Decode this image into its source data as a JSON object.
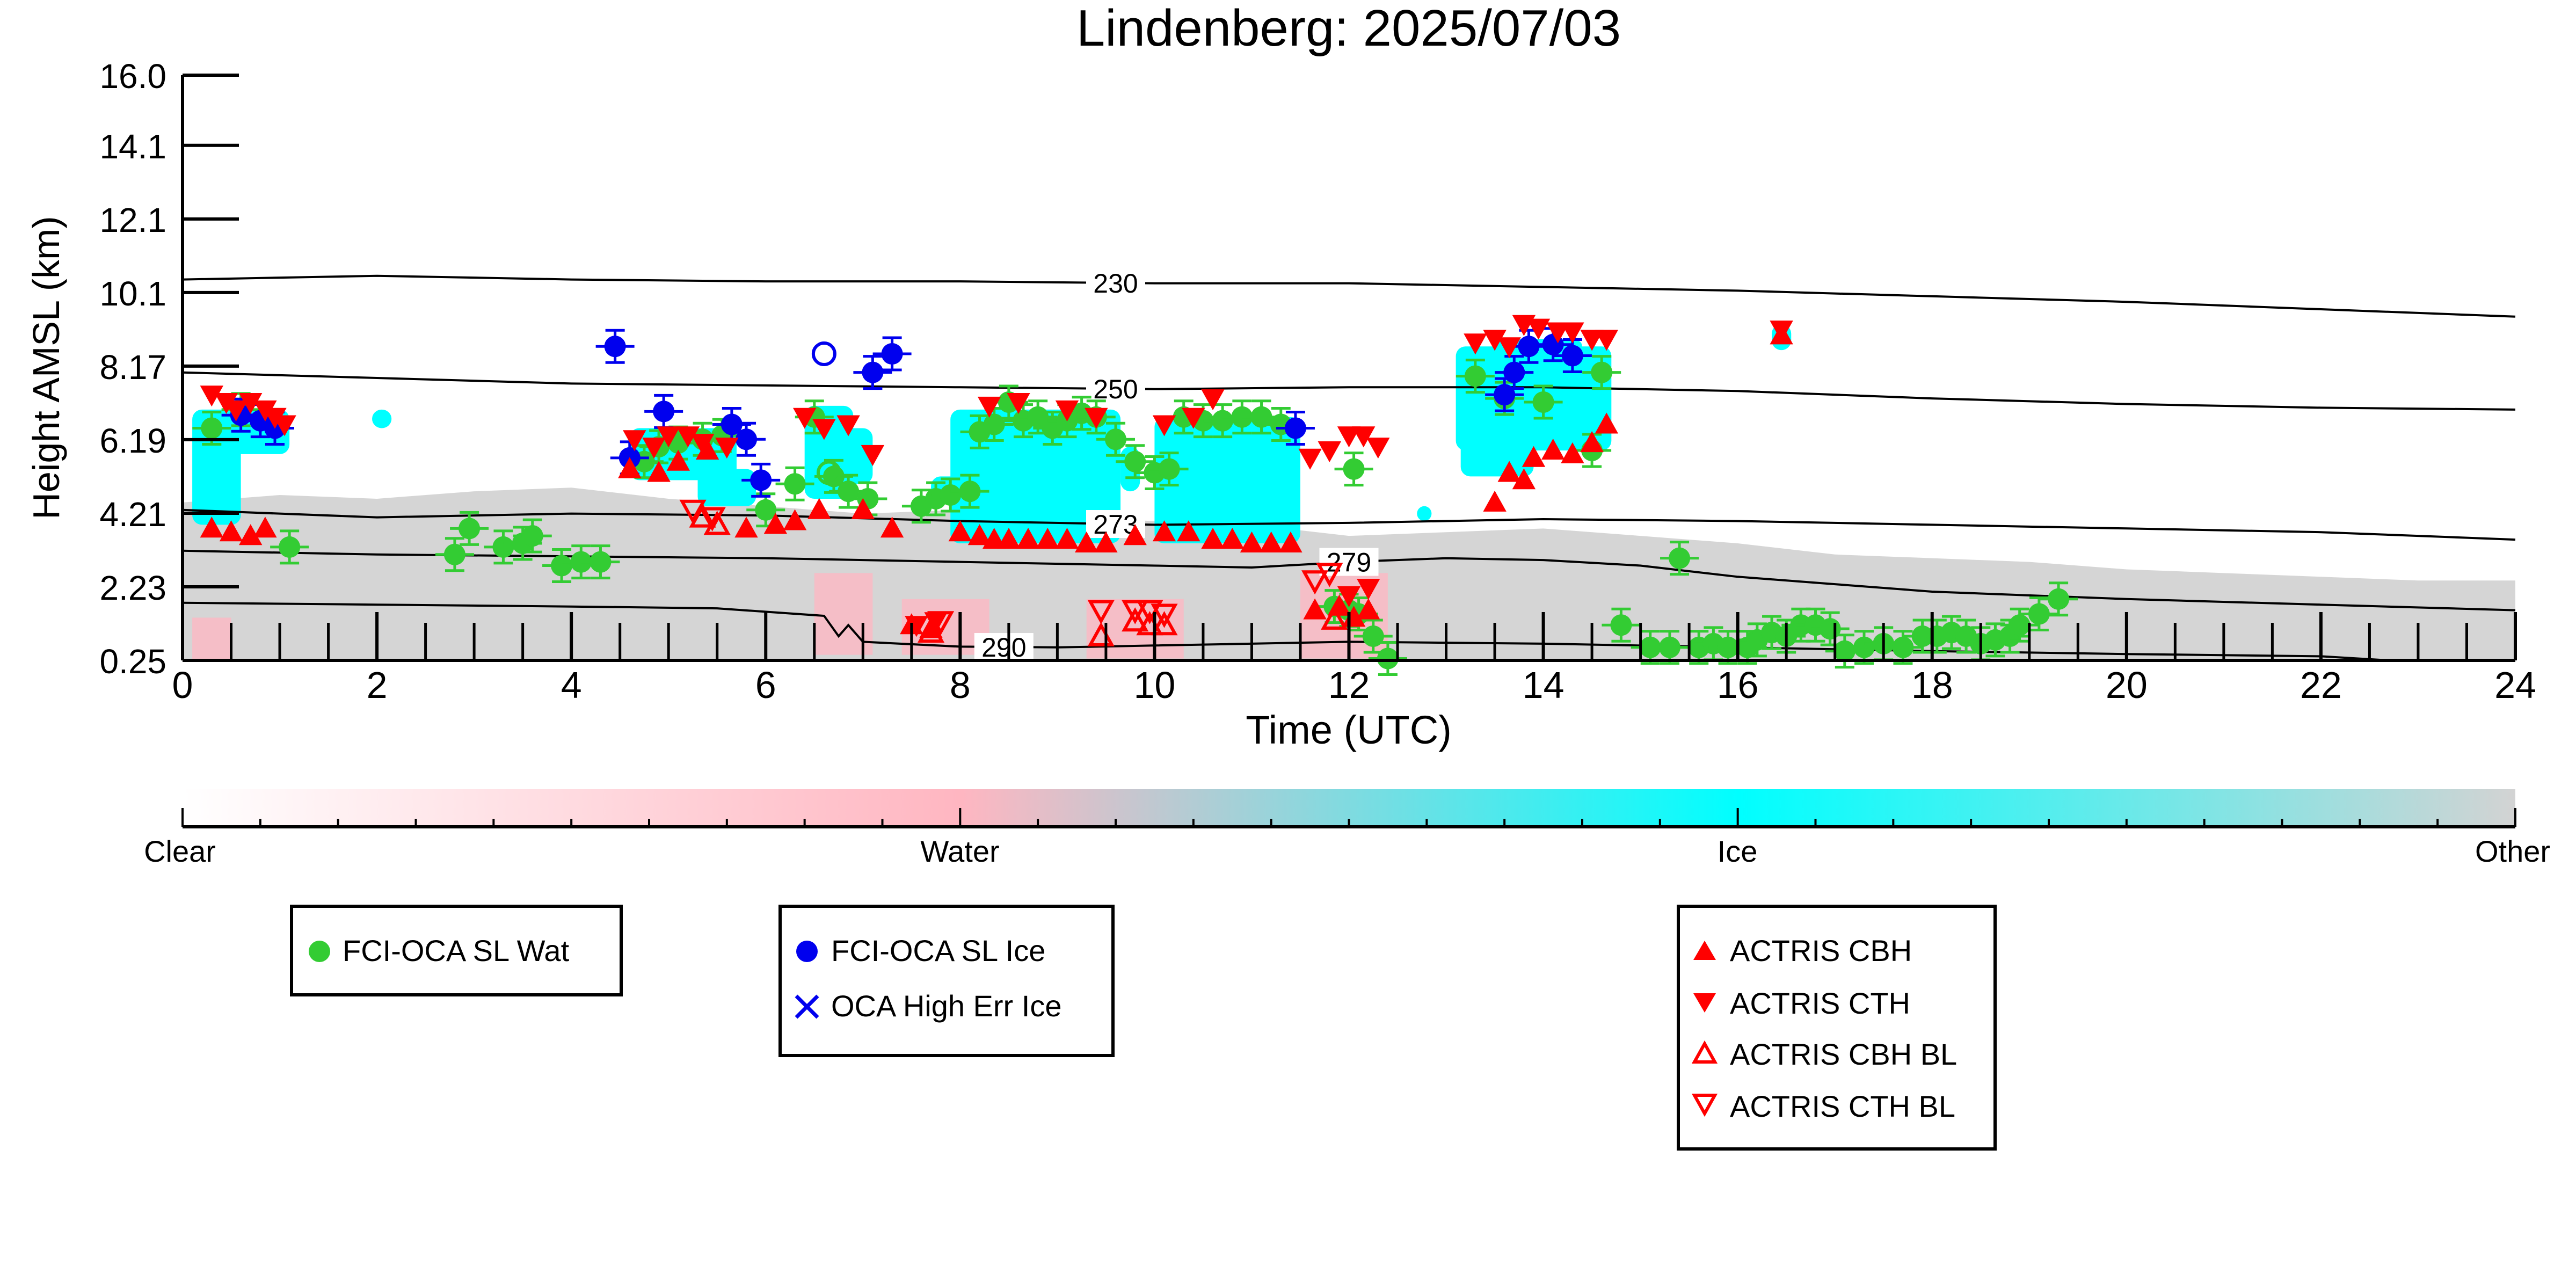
{
  "chart_data": {
    "type": "scatter",
    "title": "Lindenberg: 2025/07/03",
    "xlabel": "Time (UTC)",
    "ylabel": "Height AMSL (km)",
    "xlim": [
      0,
      24
    ],
    "ylim": [
      0.25,
      16.0
    ],
    "x_ticks": [
      "0",
      "2",
      "4",
      "6",
      "8",
      "10",
      "12",
      "14",
      "16",
      "18",
      "20",
      "22",
      "24"
    ],
    "x_tick_values": [
      0,
      2,
      4,
      6,
      8,
      10,
      12,
      14,
      16,
      18,
      20,
      22,
      24
    ],
    "y_ticks": [
      "0.25",
      "2.23",
      "4.21",
      "6.19",
      "8.17",
      "10.1",
      "12.1",
      "14.1",
      "16.0"
    ],
    "y_tick_values": [
      0.25,
      2.23,
      4.21,
      6.19,
      8.17,
      10.15,
      12.13,
      14.11,
      16.0
    ],
    "grid": false,
    "colorbar": {
      "labels": [
        "Clear",
        "Water",
        "Ice",
        "Other"
      ],
      "colors": [
        "#ffffff",
        "#ffb6c1",
        "#00ffff",
        "#d3d3d3"
      ]
    },
    "colors": {
      "water": "#33cc33",
      "ice": "#0000ee",
      "actris": "#ff0000",
      "cloud_ice": "#00ffff",
      "cloud_water": "#ffb6c1",
      "cloud_other": "#d3d3d3"
    },
    "isotherms": [
      {
        "label": "230",
        "label_x": 9.6,
        "x": [
          0,
          2,
          4,
          6,
          8,
          10,
          12,
          14,
          16,
          18,
          20,
          22,
          24
        ],
        "y": [
          10.5,
          10.6,
          10.5,
          10.45,
          10.45,
          10.4,
          10.4,
          10.3,
          10.2,
          10.05,
          9.9,
          9.7,
          9.5
        ]
      },
      {
        "label": "250",
        "label_x": 9.6,
        "x": [
          0,
          2,
          4,
          6,
          8,
          10,
          12,
          14,
          16,
          18,
          20,
          22,
          24
        ],
        "y": [
          8.0,
          7.85,
          7.7,
          7.65,
          7.6,
          7.55,
          7.6,
          7.6,
          7.5,
          7.3,
          7.15,
          7.05,
          7.0
        ]
      },
      {
        "label": "273",
        "label_x": 9.6,
        "x": [
          0,
          2,
          4,
          6,
          8,
          10,
          12,
          14,
          16,
          18,
          20,
          22,
          24
        ],
        "y": [
          4.3,
          4.1,
          4.2,
          4.15,
          4.0,
          3.9,
          3.95,
          4.05,
          4.0,
          3.9,
          3.8,
          3.7,
          3.5
        ]
      },
      {
        "label": "279",
        "label_x": 12.0,
        "x": [
          0,
          2,
          4,
          6,
          7,
          8,
          10,
          11,
          12,
          13,
          14,
          15,
          16,
          17,
          18,
          20,
          22,
          24
        ],
        "y": [
          3.2,
          3.1,
          3.05,
          3.0,
          2.95,
          2.9,
          2.8,
          2.75,
          2.9,
          3.0,
          2.95,
          2.8,
          2.5,
          2.3,
          2.1,
          1.9,
          1.75,
          1.6
        ]
      },
      {
        "label": "290",
        "label_x": 8.45,
        "x": [
          0,
          2,
          4,
          5.5,
          6.6,
          6.75,
          6.85,
          7.0,
          8.0,
          9.0,
          10.0,
          12.0,
          14.0,
          16.0,
          18.0,
          20.0,
          22.0,
          22.7
        ],
        "y": [
          1.8,
          1.75,
          1.7,
          1.65,
          1.45,
          0.9,
          1.2,
          0.75,
          0.62,
          0.6,
          0.65,
          0.75,
          0.7,
          0.6,
          0.5,
          0.42,
          0.36,
          0.25
        ]
      }
    ],
    "series": [
      {
        "name": "FCI-OCA SL Wat",
        "marker": "circle",
        "points": [
          [
            0.3,
            6.5
          ],
          [
            0.6,
            7.0
          ],
          [
            1.1,
            3.3
          ],
          [
            2.8,
            3.1
          ],
          [
            2.95,
            3.8
          ],
          [
            3.3,
            3.3
          ],
          [
            3.5,
            3.4
          ],
          [
            3.6,
            3.6
          ],
          [
            3.9,
            2.8
          ],
          [
            4.1,
            2.9
          ],
          [
            4.3,
            2.9
          ],
          [
            4.75,
            5.6
          ],
          [
            4.9,
            6.0
          ],
          [
            5.1,
            6.1
          ],
          [
            5.35,
            6.2
          ],
          [
            5.55,
            6.3
          ],
          [
            6.0,
            4.3
          ],
          [
            6.3,
            5.0
          ],
          [
            6.5,
            6.8
          ],
          [
            6.7,
            5.2
          ],
          [
            6.85,
            4.8
          ],
          [
            7.05,
            4.6
          ],
          [
            7.6,
            4.4
          ],
          [
            7.75,
            4.6
          ],
          [
            7.9,
            4.7
          ],
          [
            8.1,
            4.8
          ],
          [
            8.2,
            6.4
          ],
          [
            8.35,
            6.6
          ],
          [
            8.5,
            7.2
          ],
          [
            8.65,
            6.7
          ],
          [
            8.8,
            6.8
          ],
          [
            8.95,
            6.5
          ],
          [
            9.1,
            6.7
          ],
          [
            9.25,
            6.9
          ],
          [
            9.4,
            6.8
          ],
          [
            9.6,
            6.2
          ],
          [
            9.8,
            5.6
          ],
          [
            10.0,
            5.3
          ],
          [
            10.15,
            5.4
          ],
          [
            10.3,
            6.8
          ],
          [
            10.5,
            6.7
          ],
          [
            10.7,
            6.7
          ],
          [
            10.9,
            6.8
          ],
          [
            11.1,
            6.8
          ],
          [
            11.3,
            6.6
          ],
          [
            11.85,
            1.7
          ],
          [
            12.0,
            1.6
          ],
          [
            12.1,
            1.5
          ],
          [
            12.25,
            0.9
          ],
          [
            12.4,
            0.3
          ],
          [
            12.05,
            5.4
          ],
          [
            13.3,
            7.9
          ],
          [
            13.6,
            7.3
          ],
          [
            14.0,
            7.2
          ],
          [
            14.5,
            5.9
          ],
          [
            14.6,
            8.0
          ],
          [
            14.8,
            1.2
          ],
          [
            15.1,
            0.6
          ],
          [
            15.3,
            0.6
          ],
          [
            15.4,
            3.0
          ],
          [
            15.6,
            0.6
          ],
          [
            15.75,
            0.7
          ],
          [
            15.9,
            0.6
          ],
          [
            16.1,
            0.6
          ],
          [
            16.2,
            0.8
          ],
          [
            16.35,
            1.0
          ],
          [
            16.5,
            0.9
          ],
          [
            16.65,
            1.2
          ],
          [
            16.8,
            1.2
          ],
          [
            16.95,
            1.1
          ],
          [
            17.1,
            0.5
          ],
          [
            17.3,
            0.6
          ],
          [
            17.5,
            0.7
          ],
          [
            17.7,
            0.6
          ],
          [
            17.9,
            0.9
          ],
          [
            18.05,
            0.9
          ],
          [
            18.2,
            1.0
          ],
          [
            18.35,
            0.9
          ],
          [
            18.5,
            0.7
          ],
          [
            18.65,
            0.8
          ],
          [
            18.8,
            0.9
          ],
          [
            18.9,
            1.2
          ],
          [
            19.1,
            1.5
          ],
          [
            19.3,
            1.9
          ]
        ]
      },
      {
        "name": "FCI-OCA SL Ice",
        "marker": "circle",
        "points": [
          [
            0.6,
            6.85
          ],
          [
            0.8,
            6.7
          ],
          [
            0.95,
            6.5
          ],
          [
            4.45,
            8.7
          ],
          [
            4.6,
            5.7
          ],
          [
            4.95,
            6.95
          ],
          [
            5.65,
            6.6
          ],
          [
            5.8,
            6.2
          ],
          [
            5.95,
            5.1
          ],
          [
            7.1,
            8.0
          ],
          [
            7.3,
            8.5
          ],
          [
            11.45,
            6.5
          ],
          [
            13.6,
            7.4
          ],
          [
            13.7,
            8.0
          ],
          [
            13.85,
            8.7
          ],
          [
            14.1,
            8.75
          ],
          [
            14.3,
            8.45
          ]
        ]
      },
      {
        "name": "OCA High Err Ice",
        "marker": "x",
        "points": []
      },
      {
        "name": "ACTRIS CBH",
        "marker": "triangle-up",
        "points": [
          [
            0.3,
            3.8
          ],
          [
            0.5,
            3.7
          ],
          [
            0.7,
            3.6
          ],
          [
            0.85,
            3.8
          ],
          [
            4.6,
            5.4
          ],
          [
            4.9,
            5.3
          ],
          [
            5.1,
            5.6
          ],
          [
            5.4,
            5.9
          ],
          [
            5.8,
            3.8
          ],
          [
            6.1,
            3.9
          ],
          [
            6.3,
            4.0
          ],
          [
            6.55,
            4.3
          ],
          [
            7.0,
            4.3
          ],
          [
            7.3,
            3.8
          ],
          [
            7.5,
            1.2
          ],
          [
            7.7,
            1.1
          ],
          [
            8.0,
            3.7
          ],
          [
            8.2,
            3.6
          ],
          [
            8.35,
            3.5
          ],
          [
            8.5,
            3.5
          ],
          [
            8.7,
            3.5
          ],
          [
            8.9,
            3.5
          ],
          [
            9.1,
            3.5
          ],
          [
            9.3,
            3.4
          ],
          [
            9.5,
            3.4
          ],
          [
            9.8,
            3.6
          ],
          [
            10.1,
            3.7
          ],
          [
            10.35,
            3.7
          ],
          [
            10.6,
            3.5
          ],
          [
            10.8,
            3.5
          ],
          [
            11.0,
            3.4
          ],
          [
            11.2,
            3.4
          ],
          [
            11.4,
            3.4
          ],
          [
            11.65,
            1.6
          ],
          [
            11.9,
            1.7
          ],
          [
            12.05,
            1.4
          ],
          [
            12.2,
            1.6
          ],
          [
            13.5,
            4.5
          ],
          [
            13.65,
            5.3
          ],
          [
            13.8,
            5.1
          ],
          [
            13.9,
            5.7
          ],
          [
            14.1,
            5.9
          ],
          [
            14.3,
            5.8
          ],
          [
            14.5,
            6.1
          ],
          [
            14.65,
            6.6
          ],
          [
            16.45,
            9.0
          ]
        ]
      },
      {
        "name": "ACTRIS CTH",
        "marker": "triangle-down",
        "points": [
          [
            0.3,
            7.4
          ],
          [
            0.45,
            7.2
          ],
          [
            0.55,
            7.0
          ],
          [
            0.7,
            7.2
          ],
          [
            0.85,
            7.0
          ],
          [
            0.95,
            6.8
          ],
          [
            1.05,
            6.6
          ],
          [
            4.65,
            6.2
          ],
          [
            4.85,
            6.0
          ],
          [
            5.0,
            6.3
          ],
          [
            5.2,
            6.3
          ],
          [
            5.35,
            6.1
          ],
          [
            5.6,
            6.0
          ],
          [
            6.4,
            6.8
          ],
          [
            6.6,
            6.5
          ],
          [
            6.85,
            6.6
          ],
          [
            7.1,
            5.8
          ],
          [
            7.55,
            1.2
          ],
          [
            7.75,
            1.3
          ],
          [
            8.3,
            7.1
          ],
          [
            8.6,
            7.2
          ],
          [
            9.1,
            7.0
          ],
          [
            9.4,
            6.8
          ],
          [
            10.1,
            6.6
          ],
          [
            10.4,
            6.8
          ],
          [
            10.6,
            7.3
          ],
          [
            11.6,
            5.7
          ],
          [
            11.8,
            5.9
          ],
          [
            12.0,
            6.3
          ],
          [
            12.15,
            6.3
          ],
          [
            12.3,
            6.0
          ],
          [
            12.0,
            2.0
          ],
          [
            12.2,
            2.2
          ],
          [
            13.3,
            8.8
          ],
          [
            13.5,
            8.9
          ],
          [
            13.65,
            8.7
          ],
          [
            13.8,
            9.3
          ],
          [
            13.95,
            9.2
          ],
          [
            14.15,
            9.1
          ],
          [
            14.3,
            9.1
          ],
          [
            14.5,
            8.9
          ],
          [
            14.65,
            8.9
          ],
          [
            16.45,
            9.15
          ]
        ]
      },
      {
        "name": "ACTRIS CBH BL",
        "marker": "triangle-up-open",
        "points": [
          [
            5.35,
            4.1
          ],
          [
            5.5,
            3.9
          ],
          [
            7.7,
            1.0
          ],
          [
            9.45,
            0.9
          ],
          [
            9.8,
            1.3
          ],
          [
            9.95,
            1.2
          ],
          [
            10.1,
            1.2
          ],
          [
            11.85,
            1.35
          ]
        ]
      },
      {
        "name": "ACTRIS CTH BL",
        "marker": "triangle-down-open",
        "points": [
          [
            5.25,
            4.3
          ],
          [
            5.45,
            4.1
          ],
          [
            7.8,
            1.3
          ],
          [
            9.45,
            1.6
          ],
          [
            9.8,
            1.6
          ],
          [
            9.95,
            1.6
          ],
          [
            10.1,
            1.5
          ],
          [
            11.65,
            2.4
          ],
          [
            11.8,
            2.6
          ]
        ]
      }
    ],
    "ice_open_points": [
      [
        6.6,
        8.5
      ],
      [
        6.65,
        5.3
      ]
    ],
    "legends": [
      {
        "entries": [
          "FCI-OCA SL Wat"
        ]
      },
      {
        "entries": [
          "FCI-OCA SL Ice",
          "OCA High Err Ice"
        ]
      },
      {
        "entries": [
          "ACTRIS CBH",
          "ACTRIS CTH",
          "ACTRIS CBH BL",
          "ACTRIS CTH BL"
        ]
      }
    ]
  }
}
